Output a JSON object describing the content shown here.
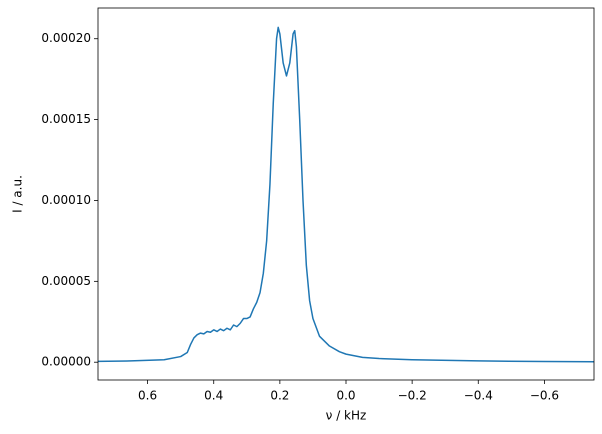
{
  "chart_data": {
    "type": "line",
    "x_label": "ν / kHz",
    "y_label": "I / a.u.",
    "x": [
      0.75,
      0.65,
      0.55,
      0.5,
      0.48,
      0.47,
      0.46,
      0.45,
      0.44,
      0.43,
      0.42,
      0.41,
      0.4,
      0.39,
      0.38,
      0.37,
      0.36,
      0.35,
      0.34,
      0.33,
      0.32,
      0.31,
      0.3,
      0.29,
      0.28,
      0.27,
      0.26,
      0.25,
      0.24,
      0.23,
      0.22,
      0.21,
      0.205,
      0.2,
      0.19,
      0.18,
      0.17,
      0.16,
      0.155,
      0.15,
      0.14,
      0.13,
      0.12,
      0.11,
      0.1,
      0.08,
      0.05,
      0.02,
      0.0,
      -0.05,
      -0.1,
      -0.2,
      -0.4,
      -0.6,
      -0.75
    ],
    "series": [
      {
        "color": "#1f77b4",
        "values": [
          5e-07,
          8e-07,
          1.5e-06,
          3.5e-06,
          6e-06,
          1.1e-05,
          1.5e-05,
          1.7e-05,
          1.8e-05,
          1.75e-05,
          1.9e-05,
          1.85e-05,
          2e-05,
          1.9e-05,
          2.05e-05,
          1.95e-05,
          2.1e-05,
          2e-05,
          2.3e-05,
          2.2e-05,
          2.4e-05,
          2.7e-05,
          2.7e-05,
          2.8e-05,
          3.3e-05,
          3.7e-05,
          4.3e-05,
          5.5e-05,
          7.5e-05,
          0.00011,
          0.00016,
          0.0002,
          0.000207,
          0.000203,
          0.000185,
          0.000177,
          0.000185,
          0.000203,
          0.000205,
          0.000195,
          0.00015,
          0.0001,
          6e-05,
          3.8e-05,
          2.7e-05,
          1.6e-05,
          1e-05,
          6.5e-06,
          5e-06,
          3e-06,
          2.3e-06,
          1.5e-06,
          8e-07,
          4e-07,
          3e-07
        ]
      }
    ],
    "xlim": [
      0.75,
      -0.75
    ],
    "xticks": [
      0.6,
      0.4,
      0.2,
      {
        "value": 0,
        "label": "0.0"
      },
      {
        "value": -0.2,
        "label": "−0.2"
      },
      {
        "value": -0.4,
        "label": "−0.4"
      },
      {
        "value": -0.6,
        "label": "−0.6"
      }
    ],
    "ylim": [
      -1.1e-05,
      0.000219
    ],
    "yticks": [
      {
        "value": 0,
        "label": "0.00000"
      },
      {
        "value": 5e-05,
        "label": "0.00005"
      },
      {
        "value": 0.0001,
        "label": "0.00010"
      },
      {
        "value": 0.00015,
        "label": "0.00015"
      },
      {
        "value": 0.0002,
        "label": "0.00020"
      }
    ]
  }
}
